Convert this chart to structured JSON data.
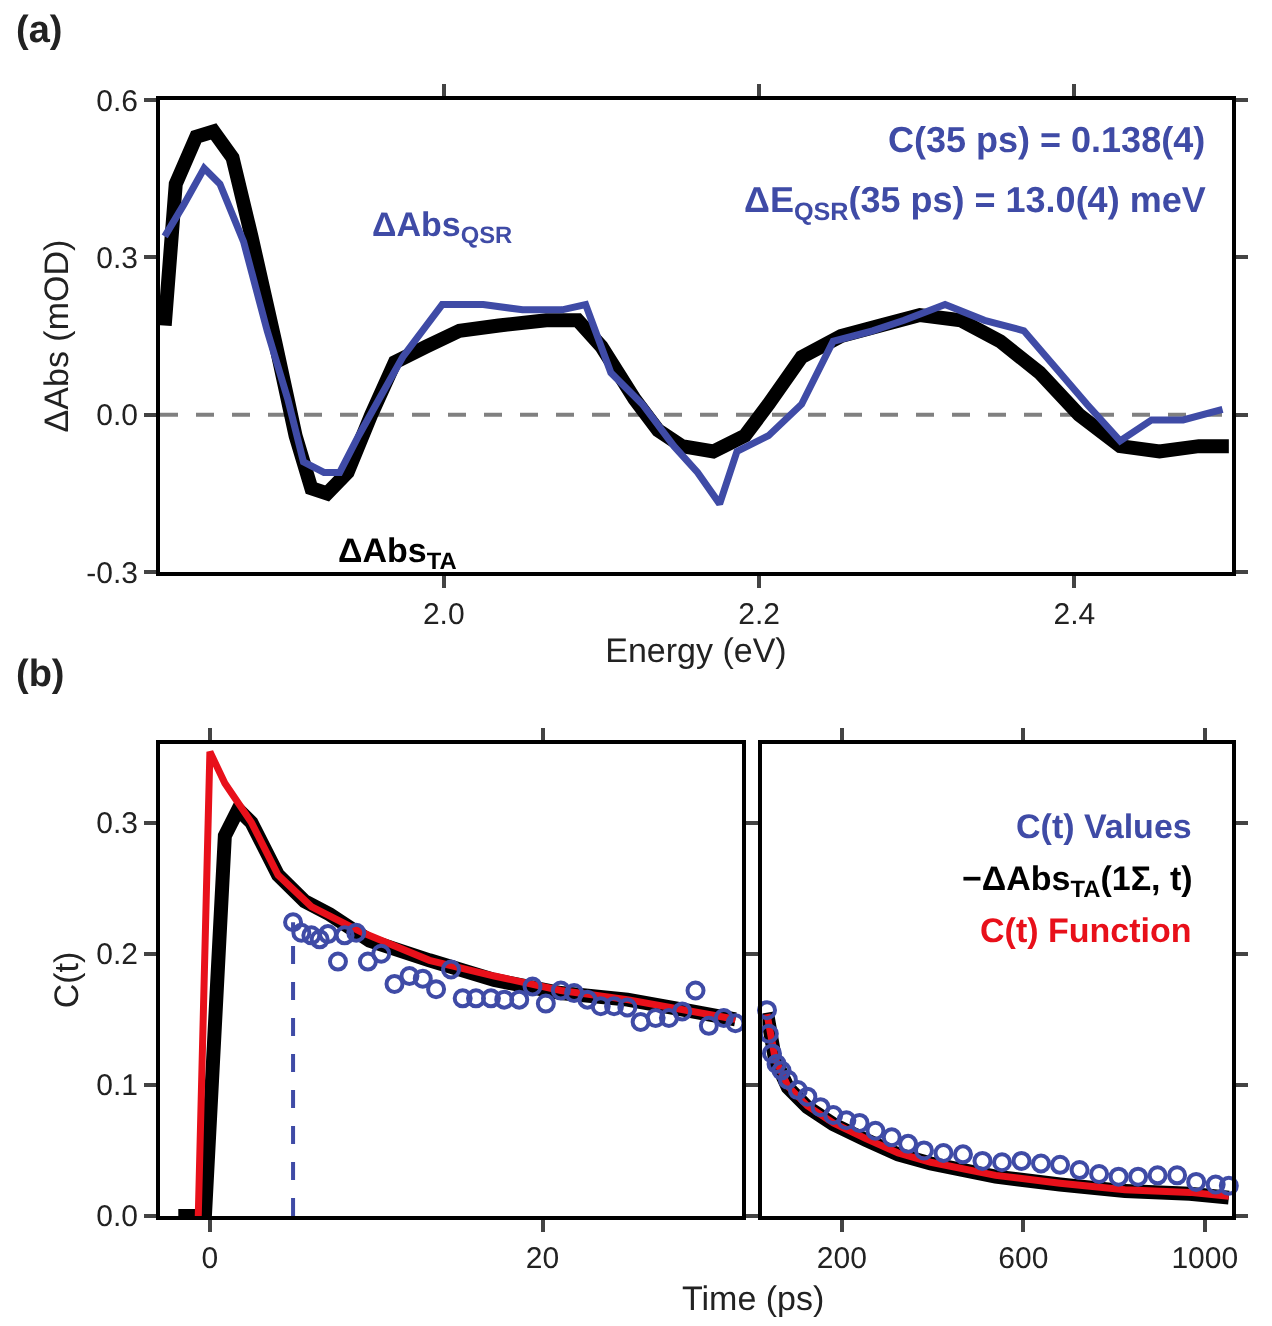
{
  "chart_data": [
    {
      "type": "line",
      "title": "(a)",
      "xlabel": "Energy (eV)",
      "ylabel": "ΔAbs (mOD)",
      "xlim": [
        1.82,
        2.5
      ],
      "ylim": [
        -0.3,
        0.6
      ],
      "xticks": [
        {
          "value": 2.0,
          "label": "2.0"
        },
        {
          "value": 2.2,
          "label": "2.2"
        },
        {
          "value": 2.4,
          "label": "2.4"
        }
      ],
      "yticks": [
        -0.3,
        {
          "value": 0,
          "label": "0.0"
        },
        0.3,
        0.6
      ],
      "grid": false,
      "legend": false,
      "annotations": [
        "C(35 ps) = 0.138(4)",
        "ΔE$_{QSR}$(35 ps) = 13.0(4) meV"
      ],
      "ref_lines": [
        {
          "axis": "y",
          "value": 0,
          "color": "#808080",
          "line_style": "dashed"
        }
      ],
      "series": [
        {
          "name": "ΔAbs$_{TA}$",
          "color": "#000000",
          "x": [
            1.823,
            1.83,
            1.843,
            1.854,
            1.866,
            1.878,
            1.893,
            1.906,
            1.916,
            1.926,
            1.939,
            1.954,
            1.969,
            1.989,
            2.01,
            2.035,
            2.065,
            2.085,
            2.1,
            2.121,
            2.136,
            2.151,
            2.171,
            2.191,
            2.206,
            2.227,
            2.252,
            2.277,
            2.302,
            2.328,
            2.353,
            2.378,
            2.403,
            2.429,
            2.454,
            2.479,
            2.498
          ],
          "values": [
            0.17,
            0.44,
            0.53,
            0.54,
            0.49,
            0.34,
            0.14,
            -0.04,
            -0.14,
            -0.15,
            -0.11,
            0.0,
            0.1,
            0.13,
            0.16,
            0.17,
            0.18,
            0.18,
            0.13,
            0.03,
            -0.03,
            -0.06,
            -0.07,
            -0.04,
            0.02,
            0.11,
            0.15,
            0.17,
            0.19,
            0.18,
            0.14,
            0.08,
            0.0,
            -0.06,
            -0.07,
            -0.06,
            -0.06
          ]
        },
        {
          "name": "ΔAbs$_{QSR}$",
          "color": "#3f4ba6",
          "x": [
            1.823,
            1.835,
            1.848,
            1.858,
            1.873,
            1.888,
            1.901,
            1.911,
            1.924,
            1.934,
            1.946,
            1.959,
            1.974,
            1.999,
            2.025,
            2.05,
            2.075,
            2.09,
            2.106,
            2.126,
            2.146,
            2.161,
            2.175,
            2.186,
            2.206,
            2.227,
            2.247,
            2.272,
            2.292,
            2.318,
            2.343,
            2.368,
            2.388,
            2.408,
            2.429,
            2.449,
            2.469,
            2.494
          ],
          "values": [
            0.34,
            0.4,
            0.47,
            0.44,
            0.33,
            0.16,
            0.03,
            -0.09,
            -0.11,
            -0.11,
            -0.04,
            0.03,
            0.11,
            0.21,
            0.21,
            0.2,
            0.2,
            0.21,
            0.08,
            0.02,
            -0.06,
            -0.11,
            -0.17,
            -0.07,
            -0.04,
            0.02,
            0.14,
            0.16,
            0.18,
            0.21,
            0.18,
            0.16,
            0.09,
            0.02,
            -0.05,
            -0.01,
            -0.01,
            0.01
          ]
        }
      ]
    },
    {
      "type": "line",
      "title": "(b)",
      "xlabel": "Time (ps)",
      "ylabel": "C(t)",
      "xlim": [
        -3,
        32
      ],
      "ylim": [
        0,
        0.36
      ],
      "xticks": [
        0,
        20
      ],
      "yticks": [
        {
          "value": 0,
          "label": "0.0"
        },
        0.1,
        0.2,
        0.3
      ],
      "grid": false,
      "legend": false,
      "ref_lines": [
        {
          "axis": "x",
          "value": 5,
          "color": "#3f4ba6",
          "line_style": "dashed"
        }
      ],
      "series": [
        {
          "color": "#000000",
          "x": [
            -1.9,
            -0.7,
            -0.3,
            0.9,
            1.7,
            2.5,
            4.1,
            5.7,
            7.2,
            9.6,
            13.2,
            17.1,
            21.1,
            25.1,
            28.6,
            31.6
          ],
          "values": [
            0,
            0,
            0,
            0.29,
            0.31,
            0.3,
            0.26,
            0.24,
            0.23,
            0.21,
            0.195,
            0.18,
            0.17,
            0.165,
            0.157,
            0.15
          ]
        },
        {
          "color": "#e8101a",
          "x": [
            -0.7,
            0,
            0.9,
            2.5,
            4.1,
            6.1,
            9.2,
            13.2,
            17.1,
            21.1,
            25.1,
            31.6
          ],
          "values": [
            0,
            0.354,
            0.33,
            0.3,
            0.26,
            0.236,
            0.216,
            0.195,
            0.183,
            0.172,
            0.165,
            0.15
          ]
        },
        {
          "type": "scatter",
          "marker": "circle",
          "color": "#3f4ba6",
          "x": [
            5,
            5.5,
            6.1,
            6.6,
            7.1,
            7.7,
            8.1,
            8.8,
            9.5,
            10.3,
            11.1,
            12,
            12.8,
            13.6,
            14.5,
            15.2,
            16,
            16.9,
            17.7,
            18.6,
            19.4,
            20.2,
            21.1,
            21.9,
            22.7,
            23.5,
            24.3,
            25.1,
            25.9,
            26.8,
            27.6,
            28.4,
            29.2,
            30,
            30.9,
            31.6
          ],
          "values": [
            0.224,
            0.216,
            0.214,
            0.211,
            0.215,
            0.194,
            0.214,
            0.216,
            0.194,
            0.2,
            0.177,
            0.183,
            0.181,
            0.173,
            0.188,
            0.166,
            0.166,
            0.166,
            0.165,
            0.165,
            0.175,
            0.162,
            0.172,
            0.17,
            0.165,
            0.16,
            0.16,
            0.159,
            0.148,
            0.151,
            0.151,
            0.156,
            0.172,
            0.145,
            0.151,
            0.147
          ]
        }
      ]
    },
    {
      "type": "line",
      "xlim": [
        25,
        1060
      ],
      "ylim": [
        0,
        0.36
      ],
      "xticks": [
        200,
        600,
        1000
      ],
      "yticks": [
        {
          "value": 0,
          "label": null
        },
        {
          "value": 0.1,
          "label": null
        },
        {
          "value": 0.2,
          "label": null
        },
        {
          "value": 0.3,
          "label": null
        }
      ],
      "tick_labels": "x",
      "grid": false,
      "legend": "top right",
      "series": [
        {
          "type": "scatter",
          "marker": "circle",
          "name": "C(t) Values",
          "color": "#3f4ba6",
          "x": [
            35,
            39,
            46,
            56,
            67,
            81,
            103,
            124,
            153,
            181,
            210,
            239,
            274,
            310,
            346,
            381,
            424,
            467,
            510,
            553,
            596,
            639,
            681,
            724,
            767,
            810,
            853,
            896,
            939,
            981,
            1024,
            1053
          ],
          "values": [
            0.157,
            0.139,
            0.124,
            0.116,
            0.111,
            0.104,
            0.096,
            0.091,
            0.083,
            0.077,
            0.073,
            0.071,
            0.065,
            0.06,
            0.055,
            0.05,
            0.048,
            0.047,
            0.042,
            0.041,
            0.042,
            0.04,
            0.039,
            0.035,
            0.032,
            0.03,
            0.03,
            0.031,
            0.031,
            0.026,
            0.024,
            0.023
          ]
        },
        {
          "name": "−ΔAbs$_{TA}$(1Σ, t)",
          "color": "#000000",
          "x": [
            35,
            53,
            81,
            124,
            181,
            253,
            324,
            396,
            539,
            681,
            824,
            967,
            1053
          ],
          "values": [
            0.155,
            0.119,
            0.098,
            0.083,
            0.07,
            0.058,
            0.047,
            0.04,
            0.03,
            0.024,
            0.019,
            0.017,
            0.014
          ]
        },
        {
          "name": "C(t) Function",
          "color": "#e8101a",
          "x": [
            35,
            53,
            81,
            124,
            181,
            253,
            324,
            396,
            539,
            681,
            824,
            967,
            1053
          ],
          "values": [
            0.154,
            0.12,
            0.099,
            0.084,
            0.071,
            0.059,
            0.048,
            0.041,
            0.031,
            0.025,
            0.02,
            0.018,
            0.015
          ]
        }
      ]
    }
  ]
}
